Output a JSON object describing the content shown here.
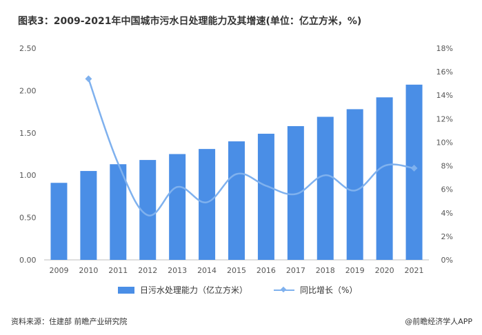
{
  "title": "图表3：2009-2021年中国城市污水日处理能力及其增速(单位：亿立方米，%)",
  "footer": {
    "source": "资料来源：住建部 前瞻产业研究院",
    "brand": "@前瞻经济学人APP"
  },
  "colors": {
    "bar": "#4a8ee6",
    "line": "#7fb1ee",
    "grid": "#e2e2e2",
    "axis_text": "#555555"
  },
  "chart_data": {
    "type": "bar",
    "categories": [
      "2009",
      "2010",
      "2011",
      "2012",
      "2013",
      "2014",
      "2015",
      "2016",
      "2017",
      "2018",
      "2019",
      "2020",
      "2021"
    ],
    "series": [
      {
        "name": "日污水处理能力（亿立方米）",
        "type": "bar",
        "axis": "left",
        "values": [
          0.91,
          1.05,
          1.13,
          1.18,
          1.25,
          1.31,
          1.4,
          1.49,
          1.58,
          1.69,
          1.78,
          1.92,
          2.07
        ]
      },
      {
        "name": "同比增长（%）",
        "type": "line",
        "axis": "right",
        "values": [
          null,
          15.4,
          8.2,
          3.8,
          6.2,
          4.9,
          7.3,
          6.3,
          5.6,
          7.2,
          5.9,
          8.0,
          7.8
        ]
      }
    ],
    "y_left": {
      "ylim": [
        0,
        2.5
      ],
      "ticks": [
        "0.00",
        "0.50",
        "1.00",
        "1.50",
        "2.00",
        "2.50"
      ]
    },
    "y_right": {
      "ylim": [
        0,
        18
      ],
      "ticks": [
        "0%",
        "2%",
        "4%",
        "6%",
        "8%",
        "10%",
        "12%",
        "14%",
        "16%",
        "18%"
      ]
    },
    "grid": false,
    "legend": "bottom"
  }
}
